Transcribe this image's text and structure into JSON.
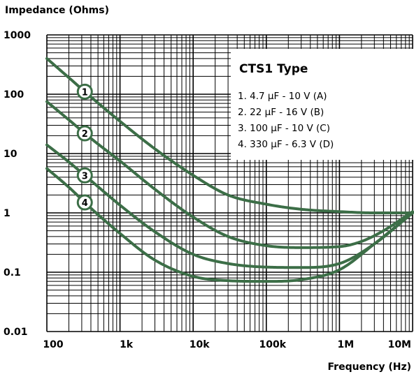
{
  "chart_data": {
    "type": "line",
    "title": "",
    "ylabel": "Impedance (Ohms)",
    "xlabel": "Frequency (Hz)",
    "x_scale": "log",
    "y_scale": "log",
    "xlim": [
      100,
      10000000
    ],
    "ylim": [
      0.01,
      1000
    ],
    "x_ticks": [
      {
        "value": 100,
        "label": "100"
      },
      {
        "value": 1000,
        "label": "1k"
      },
      {
        "value": 10000,
        "label": "10k"
      },
      {
        "value": 100000,
        "label": "100k"
      },
      {
        "value": 1000000,
        "label": "1M"
      },
      {
        "value": 10000000,
        "label": "10M"
      }
    ],
    "y_ticks": [
      {
        "value": 1000,
        "label": "1000"
      },
      {
        "value": 100,
        "label": "100"
      },
      {
        "value": 10,
        "label": "10"
      },
      {
        "value": 1,
        "label": "1"
      },
      {
        "value": 0.1,
        "label": "0.1"
      },
      {
        "value": 0.01,
        "label": "0.01"
      }
    ],
    "grid": true,
    "legend": {
      "title": "CTS1 Type",
      "placement": "top-right",
      "items": [
        "1. 4.7 μF - 10 V (A)",
        "2.  22 μF - 16 V (B)",
        "3. 100 μF - 10 V (C)",
        "4. 330 μF - 6.3 V (D)"
      ]
    },
    "line_color": "#3c6e47",
    "series": [
      {
        "marker": "1",
        "marker_x": 330,
        "x": [
          100,
          200,
          400,
          1000,
          3000,
          10000,
          30000,
          100000,
          300000,
          1000000,
          3000000,
          10000000
        ],
        "y": [
          400,
          190,
          90,
          35,
          12,
          4.3,
          2.0,
          1.4,
          1.15,
          1.05,
          1.0,
          1.0
        ]
      },
      {
        "marker": "2",
        "marker_x": 330,
        "x": [
          100,
          200,
          400,
          1000,
          3000,
          10000,
          30000,
          100000,
          300000,
          1000000,
          2000000,
          4000000,
          10000000
        ],
        "y": [
          75,
          37,
          18,
          7.5,
          2.5,
          0.85,
          0.4,
          0.28,
          0.26,
          0.27,
          0.33,
          0.5,
          1.05
        ]
      },
      {
        "marker": "3",
        "marker_x": 330,
        "x": [
          100,
          200,
          400,
          1000,
          3000,
          10000,
          30000,
          100000,
          300000,
          1000000,
          3000000,
          10000000
        ],
        "y": [
          14,
          7.2,
          3.5,
          1.35,
          0.48,
          0.2,
          0.14,
          0.122,
          0.12,
          0.14,
          0.3,
          1.0
        ]
      },
      {
        "marker": "4",
        "marker_x": 330,
        "x": [
          100,
          200,
          400,
          1000,
          3000,
          10000,
          30000,
          100000,
          300000,
          1000000,
          3000000,
          10000000
        ],
        "y": [
          5.6,
          2.7,
          1.2,
          0.45,
          0.16,
          0.085,
          0.072,
          0.07,
          0.075,
          0.11,
          0.3,
          1.0
        ]
      }
    ]
  }
}
